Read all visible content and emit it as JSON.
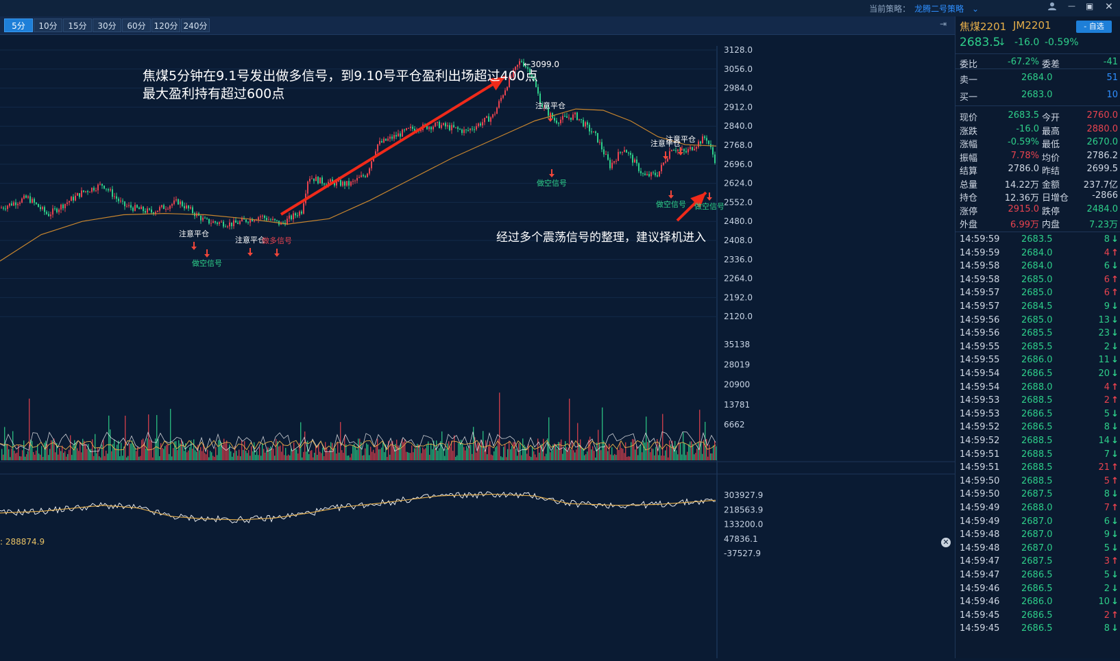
{
  "topbar": {
    "strategy_label": "当前策略：",
    "strategy_value": "龙腾二号策略",
    "min_btn": "—",
    "max_btn": "▣",
    "close_btn": "✕"
  },
  "periods": [
    {
      "label": "5分",
      "active": true
    },
    {
      "label": "10分",
      "active": false
    },
    {
      "label": "15分",
      "active": false
    },
    {
      "label": "30分",
      "active": false
    },
    {
      "label": "60分",
      "active": false
    },
    {
      "label": "120分",
      "active": false
    },
    {
      "label": "240分",
      "active": false
    }
  ],
  "price_axis": [
    "3128.0",
    "3056.0",
    "2984.0",
    "2912.0",
    "2840.0",
    "2768.0",
    "2696.0",
    "2624.0",
    "2552.0",
    "2480.0",
    "2408.0",
    "2336.0",
    "2264.0",
    "2192.0",
    "2120.0"
  ],
  "volume_axis": [
    "35138",
    "28019",
    "20900",
    "13781",
    "6662"
  ],
  "indicator_axis": [
    "303927.9",
    "218563.9",
    "133200.0",
    "47836.1",
    "-37527.9"
  ],
  "indicator_label": ": 288874.9",
  "high_marker": "←3099.0",
  "annotations": {
    "headline_1": "焦煤5分钟在9.1号发出做多信号，到9.10号平仓盈利出场超过400点",
    "headline_2": "最大盈利持有超过600点",
    "footer_note": "经过多个震荡信号的整理，建议择机进入"
  },
  "signals": [
    {
      "text": "注意平仓",
      "kind": "close"
    },
    {
      "text": "做空信号",
      "kind": "short"
    },
    {
      "text": "注意平仓",
      "kind": "close"
    },
    {
      "text": "做多信号",
      "kind": "long"
    },
    {
      "text": "注意平仓",
      "kind": "close"
    },
    {
      "text": "做空信号",
      "kind": "short"
    },
    {
      "text": "注意平仓",
      "kind": "close"
    },
    {
      "text": "注意平仓",
      "kind": "close"
    },
    {
      "text": "做空信号",
      "kind": "short"
    },
    {
      "text": "做空信号",
      "kind": "short"
    }
  ],
  "quote": {
    "name": "焦煤2201",
    "code": "JM2201",
    "watch_button": "- 自选",
    "price": "2683.5",
    "change": "-16.0",
    "change_pct": "-0.59%",
    "weibi_label": "委比",
    "weibi": "-67.2%",
    "weicha_label": "委差",
    "weicha": "-41",
    "sell1_label": "卖一",
    "sell1_price": "2684.0",
    "sell1_vol": "51",
    "buy1_label": "买一",
    "buy1_price": "2683.0",
    "buy1_vol": "10",
    "stats": [
      [
        "现价",
        "2683.5",
        "今开",
        "2760.0"
      ],
      [
        "涨跌",
        "-16.0",
        "最高",
        "2880.0"
      ],
      [
        "涨幅",
        "-0.59%",
        "最低",
        "2670.0"
      ],
      [
        "振幅",
        "7.78%",
        "均价",
        "2786.2"
      ],
      [
        "结算",
        "2786.0",
        "昨结",
        "2699.5"
      ],
      [
        "总量",
        "14.22万",
        "金额",
        "237.7亿"
      ],
      [
        "持仓",
        "12.36万",
        "日增仓",
        "-2866"
      ],
      [
        "涨停",
        "2915.0",
        "跌停",
        "2484.0"
      ],
      [
        "外盘",
        "6.99万",
        "内盘",
        "7.23万"
      ]
    ],
    "stat_colors": [
      [
        "#2ecf8a",
        "#e8434f"
      ],
      [
        "#2ecf8a",
        "#e8434f"
      ],
      [
        "#2ecf8a",
        "#2ecf8a"
      ],
      [
        "#e8434f",
        "#d0d8e4"
      ],
      [
        "#d0d8e4",
        "#d0d8e4"
      ],
      [
        "#d0d8e4",
        "#d0d8e4"
      ],
      [
        "#d0d8e4",
        "#d0d8e4"
      ],
      [
        "#e8434f",
        "#2ecf8a"
      ],
      [
        "#e8434f",
        "#2ecf8a"
      ]
    ]
  },
  "ticks": [
    [
      "14:59:59",
      "2683.5",
      "8",
      "down"
    ],
    [
      "14:59:59",
      "2684.0",
      "4",
      "up"
    ],
    [
      "14:59:58",
      "2684.0",
      "6",
      "down"
    ],
    [
      "14:59:58",
      "2685.0",
      "6",
      "up"
    ],
    [
      "14:59:57",
      "2685.0",
      "6",
      "up"
    ],
    [
      "14:59:57",
      "2684.5",
      "9",
      "down"
    ],
    [
      "14:59:56",
      "2685.0",
      "13",
      "down"
    ],
    [
      "14:59:56",
      "2685.5",
      "23",
      "down"
    ],
    [
      "14:59:55",
      "2685.5",
      "2",
      "down"
    ],
    [
      "14:59:55",
      "2686.0",
      "11",
      "down"
    ],
    [
      "14:59:54",
      "2686.5",
      "20",
      "down"
    ],
    [
      "14:59:54",
      "2688.0",
      "4",
      "up"
    ],
    [
      "14:59:53",
      "2688.5",
      "2",
      "up"
    ],
    [
      "14:59:53",
      "2686.5",
      "5",
      "down"
    ],
    [
      "14:59:52",
      "2686.5",
      "8",
      "down"
    ],
    [
      "14:59:52",
      "2688.5",
      "14",
      "down"
    ],
    [
      "14:59:51",
      "2688.5",
      "7",
      "down"
    ],
    [
      "14:59:51",
      "2688.5",
      "21",
      "up"
    ],
    [
      "14:59:50",
      "2688.5",
      "5",
      "up"
    ],
    [
      "14:59:50",
      "2687.5",
      "8",
      "down"
    ],
    [
      "14:59:49",
      "2688.0",
      "7",
      "up"
    ],
    [
      "14:59:49",
      "2687.0",
      "6",
      "down"
    ],
    [
      "14:59:48",
      "2687.0",
      "9",
      "down"
    ],
    [
      "14:59:48",
      "2687.0",
      "5",
      "down"
    ],
    [
      "14:59:47",
      "2687.5",
      "3",
      "up"
    ],
    [
      "14:59:47",
      "2686.5",
      "5",
      "down"
    ],
    [
      "14:59:46",
      "2686.5",
      "2",
      "down"
    ],
    [
      "14:59:46",
      "2686.0",
      "10",
      "down"
    ],
    [
      "14:59:45",
      "2686.5",
      "2",
      "up"
    ],
    [
      "14:59:45",
      "2686.5",
      "8",
      "down"
    ]
  ],
  "colors": {
    "up": "#e8434f",
    "down": "#2ecf8a",
    "accent": "#1e7fd8",
    "gold": "#e8b04a",
    "ma": "#c9862e"
  }
}
